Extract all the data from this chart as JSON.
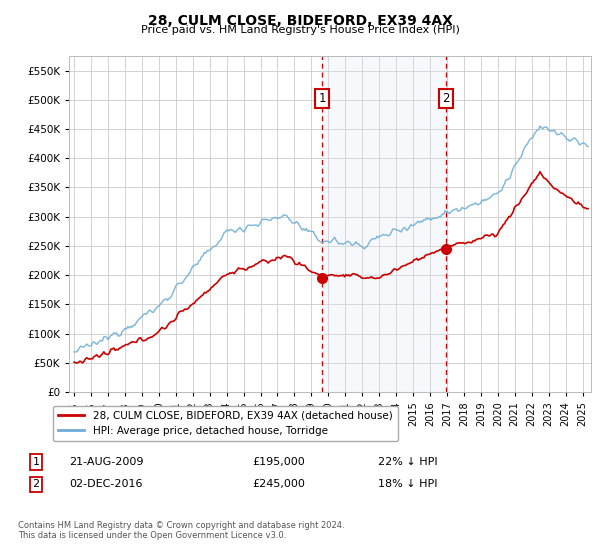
{
  "title": "28, CULM CLOSE, BIDEFORD, EX39 4AX",
  "subtitle": "Price paid vs. HM Land Registry's House Price Index (HPI)",
  "ylim": [
    0,
    575000
  ],
  "yticks": [
    0,
    50000,
    100000,
    150000,
    200000,
    250000,
    300000,
    350000,
    400000,
    450000,
    500000,
    550000
  ],
  "xlim_start": 1994.7,
  "xlim_end": 2025.5,
  "sale1_date": 2009.64,
  "sale2_date": 2016.92,
  "sale1_price": 195000,
  "sale2_price": 245000,
  "legend_line1": "28, CULM CLOSE, BIDEFORD, EX39 4AX (detached house)",
  "legend_line2": "HPI: Average price, detached house, Torridge",
  "hpi_color": "#6baed6",
  "price_color": "#cc0000",
  "vline_color": "#cc0000",
  "shade_color": "#dce6f1",
  "footer": "Contains HM Land Registry data © Crown copyright and database right 2024.\nThis data is licensed under the Open Government Licence v3.0.",
  "background_color": "#ffffff",
  "grid_color": "#cccccc",
  "title_fontsize": 10,
  "subtitle_fontsize": 8
}
